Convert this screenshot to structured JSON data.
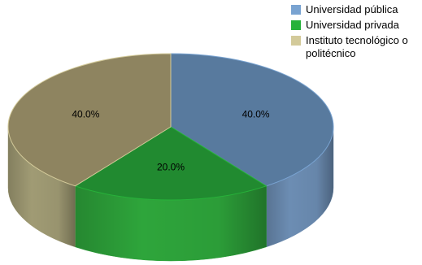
{
  "chart_data": {
    "type": "pie",
    "title": "",
    "categories": [
      "Universidad pública",
      "Universidad privada",
      "Instituto tecnológico o politécnico"
    ],
    "values": [
      40.0,
      20.0,
      40.0
    ],
    "data_labels": [
      "40.0%",
      "20.0%",
      "40.0%"
    ],
    "legend_placement": "top-right",
    "colors": {
      "top": [
        "#587a9e",
        "#218a30",
        "#8e8460"
      ],
      "side": [
        "#6c8db3",
        "#2ea53b",
        "#a09b74"
      ]
    },
    "legend_colors": [
      "#79a3d1",
      "#27b23a",
      "#d3ca9a"
    ]
  }
}
